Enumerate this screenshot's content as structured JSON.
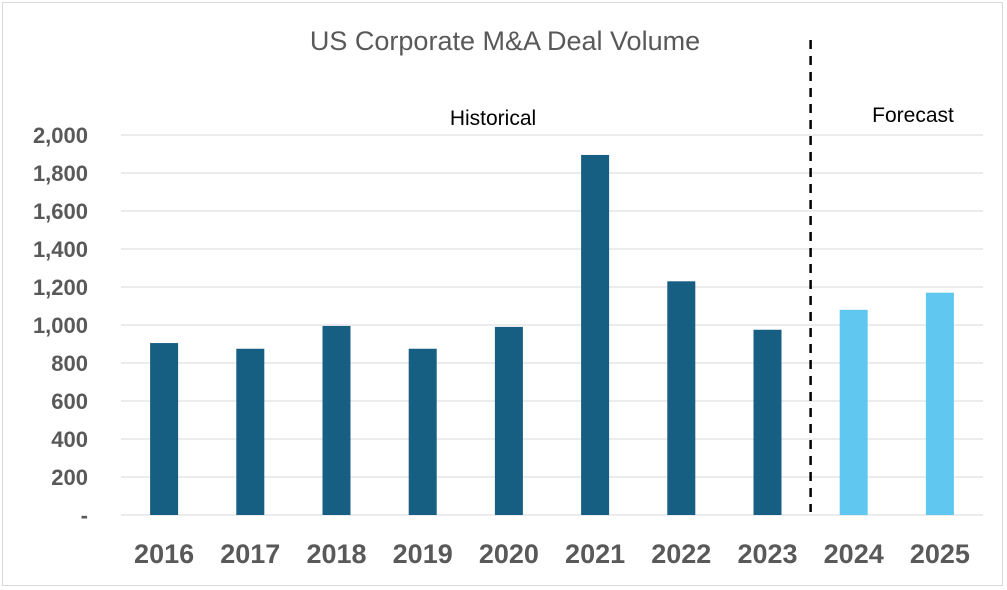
{
  "chart_data": {
    "type": "bar",
    "title": "US Corporate M&A Deal Volume",
    "categories": [
      "2016",
      "2017",
      "2018",
      "2019",
      "2020",
      "2021",
      "2022",
      "2023",
      "2024",
      "2025"
    ],
    "values": [
      905,
      875,
      995,
      875,
      990,
      1895,
      1230,
      975,
      1080,
      1170
    ],
    "regions": [
      {
        "label": "Historical",
        "categories": [
          "2016",
          "2017",
          "2018",
          "2019",
          "2020",
          "2021",
          "2022",
          "2023"
        ],
        "color": "#175e83"
      },
      {
        "label": "Forecast",
        "categories": [
          "2024",
          "2025"
        ],
        "color": "#60c8f0"
      }
    ],
    "ylim": [
      0,
      2000
    ],
    "y_ticks": [
      0,
      200,
      400,
      600,
      800,
      1000,
      1200,
      1400,
      1600,
      1800,
      2000
    ],
    "y_tick_labels": [
      "-",
      "200",
      "400",
      "600",
      "800",
      "1,000",
      "1,200",
      "1,400",
      "1,600",
      "1,800",
      "2,000"
    ],
    "grid": true,
    "divider": {
      "between": [
        "2023",
        "2024"
      ],
      "style": "dashed",
      "color": "#000000"
    }
  }
}
